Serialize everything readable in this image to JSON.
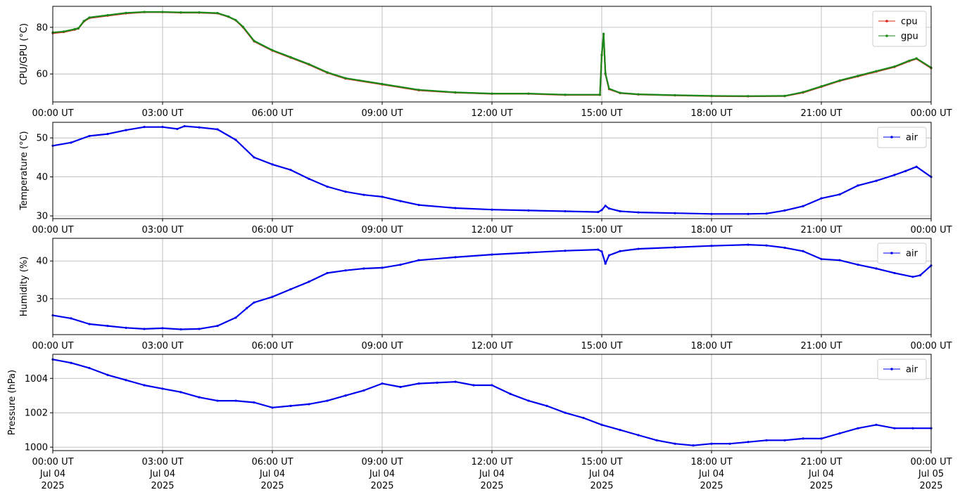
{
  "chart_data": [
    {
      "type": "scatter",
      "ylabel": "CPU/GPU (°C)",
      "ylim": [
        48,
        89
      ],
      "yticks": [
        60,
        80
      ],
      "xlim": [
        0,
        24
      ],
      "xticks": [
        0,
        3,
        6,
        9,
        12,
        15,
        18,
        21,
        24
      ],
      "xtick_labels": [
        "00:00 UT",
        "03:00 UT",
        "06:00 UT",
        "09:00 UT",
        "12:00 UT",
        "15:00 UT",
        "18:00 UT",
        "21:00 UT",
        "00:00 UT"
      ],
      "grid": true,
      "legend": "top-right",
      "series": [
        {
          "name": "cpu",
          "color": "#e0201b",
          "x": [
            0,
            0.3,
            0.6,
            0.7,
            0.85,
            1.0,
            1.5,
            2.0,
            2.5,
            3.0,
            3.5,
            4.0,
            4.5,
            4.8,
            5.0,
            5.2,
            5.5,
            6.0,
            6.5,
            7.0,
            7.5,
            8.0,
            9.0,
            10.0,
            11.0,
            12.0,
            13.0,
            14.0,
            14.95,
            15.0,
            15.05,
            15.1,
            15.2,
            15.5,
            16.0,
            17.0,
            18.0,
            19.0,
            20.0,
            20.5,
            21.0,
            21.5,
            22.0,
            22.5,
            23.0,
            23.4,
            23.6,
            24.0
          ],
          "y": [
            77.5,
            78,
            79,
            79.5,
            82.5,
            84,
            85,
            86,
            86.5,
            86.5,
            86.3,
            86.3,
            86,
            84.5,
            83,
            80,
            74,
            70,
            67,
            64,
            60.5,
            58,
            55.5,
            53,
            52,
            51.5,
            51.5,
            51,
            51,
            68,
            77,
            60,
            53.5,
            51.8,
            51.2,
            50.8,
            50.5,
            50.4,
            50.5,
            52,
            54.5,
            57,
            59,
            61,
            63,
            65.5,
            66.5,
            62.5
          ]
        },
        {
          "name": "gpu",
          "color": "#1a8a1a",
          "x": [
            0,
            0.3,
            0.6,
            0.7,
            0.85,
            1.0,
            1.5,
            2.0,
            2.5,
            3.0,
            3.5,
            4.0,
            4.5,
            4.8,
            5.0,
            5.2,
            5.5,
            6.0,
            6.5,
            7.0,
            7.5,
            8.0,
            9.0,
            10.0,
            11.0,
            12.0,
            13.0,
            14.0,
            14.95,
            15.0,
            15.05,
            15.1,
            15.2,
            15.5,
            16.0,
            17.0,
            18.0,
            19.0,
            20.0,
            20.5,
            21.0,
            21.5,
            22.0,
            22.5,
            23.0,
            23.4,
            23.6,
            24.0
          ],
          "y": [
            77.8,
            78.2,
            79.2,
            79.6,
            82.7,
            84.2,
            85.2,
            86.2,
            86.6,
            86.6,
            86.4,
            86.4,
            86.1,
            84.6,
            83.1,
            80.2,
            74.2,
            70.2,
            67.2,
            64.2,
            60.7,
            58.2,
            55.7,
            53.2,
            52.1,
            51.6,
            51.6,
            51.1,
            51.1,
            68.3,
            77.2,
            60.3,
            53.7,
            51.9,
            51.3,
            50.9,
            50.6,
            50.5,
            50.6,
            52.2,
            54.7,
            57.2,
            59.2,
            61.2,
            63.2,
            65.7,
            66.7,
            62.7
          ]
        }
      ]
    },
    {
      "type": "scatter",
      "ylabel": "Temperature (°C)",
      "ylim": [
        29.3,
        54
      ],
      "yticks": [
        30,
        40,
        50
      ],
      "xlim": [
        0,
        24
      ],
      "xticks": [
        0,
        3,
        6,
        9,
        12,
        15,
        18,
        21,
        24
      ],
      "xtick_labels": [
        "00:00 UT",
        "03:00 UT",
        "06:00 UT",
        "09:00 UT",
        "12:00 UT",
        "15:00 UT",
        "18:00 UT",
        "21:00 UT",
        "00:00 UT"
      ],
      "grid": true,
      "legend": "top-right",
      "series": [
        {
          "name": "air",
          "color": "#0000ee",
          "x": [
            0,
            0.5,
            1.0,
            1.5,
            2.0,
            2.5,
            3.0,
            3.4,
            3.6,
            4.0,
            4.5,
            5.0,
            5.5,
            6.0,
            6.5,
            7.0,
            7.5,
            8.0,
            8.5,
            9.0,
            9.5,
            10.0,
            11.0,
            12.0,
            13.0,
            14.0,
            14.9,
            15.0,
            15.1,
            15.2,
            15.5,
            16.0,
            17.0,
            18.0,
            19.0,
            19.5,
            20.0,
            20.5,
            21.0,
            21.5,
            22.0,
            22.5,
            23.0,
            23.3,
            23.6,
            24.0
          ],
          "y": [
            48,
            48.8,
            50.5,
            51,
            52,
            52.8,
            52.8,
            52.3,
            53,
            52.7,
            52.2,
            49.5,
            45,
            43.2,
            41.8,
            39.5,
            37.5,
            36.2,
            35.4,
            34.9,
            33.8,
            32.8,
            32,
            31.6,
            31.4,
            31.2,
            31,
            31.5,
            32.6,
            31.9,
            31.2,
            30.9,
            30.7,
            30.5,
            30.5,
            30.6,
            31.4,
            32.5,
            34.5,
            35.5,
            37.8,
            39,
            40.5,
            41.5,
            42.6,
            40
          ]
        }
      ]
    },
    {
      "type": "scatter",
      "ylabel": "Humidity (%)",
      "ylim": [
        20.5,
        46
      ],
      "yticks": [
        30,
        40
      ],
      "xlim": [
        0,
        24
      ],
      "xticks": [
        0,
        3,
        6,
        9,
        12,
        15,
        18,
        21,
        24
      ],
      "xtick_labels": [
        "00:00 UT",
        "03:00 UT",
        "06:00 UT",
        "09:00 UT",
        "12:00 UT",
        "15:00 UT",
        "18:00 UT",
        "21:00 UT",
        "00:00 UT"
      ],
      "grid": true,
      "legend": "top-right",
      "series": [
        {
          "name": "air",
          "color": "#0000ee",
          "x": [
            0,
            0.5,
            1.0,
            1.5,
            2.0,
            2.5,
            3.0,
            3.5,
            4.0,
            4.5,
            5.0,
            5.3,
            5.5,
            6.0,
            6.5,
            7.0,
            7.5,
            8.0,
            8.5,
            9.0,
            9.5,
            10.0,
            11.0,
            12.0,
            13.0,
            14.0,
            14.9,
            15.0,
            15.1,
            15.2,
            15.5,
            16.0,
            17.0,
            18.0,
            19.0,
            19.5,
            20.0,
            20.5,
            21.0,
            21.5,
            22.0,
            22.5,
            23.0,
            23.5,
            23.7,
            24.0
          ],
          "y": [
            25.6,
            24.8,
            23.3,
            22.8,
            22.3,
            22,
            22.2,
            21.9,
            22,
            22.8,
            25,
            27.5,
            29,
            30.5,
            32.5,
            34.5,
            36.8,
            37.5,
            38,
            38.2,
            39,
            40.2,
            41,
            41.7,
            42.2,
            42.7,
            43,
            42.5,
            39.3,
            41.5,
            42.6,
            43.2,
            43.6,
            44,
            44.3,
            44.1,
            43.5,
            42.6,
            40.5,
            40.2,
            39,
            38,
            36.8,
            35.8,
            36.2,
            38.8
          ]
        }
      ]
    },
    {
      "type": "scatter",
      "ylabel": "Pressure (hPa)",
      "ylim": [
        999.8,
        1005.4
      ],
      "yticks": [
        1000,
        1002,
        1004
      ],
      "xlim": [
        0,
        24
      ],
      "xticks": [
        0,
        3,
        6,
        9,
        12,
        15,
        18,
        21,
        24
      ],
      "xtick_labels": [
        "00:00 UT",
        "03:00 UT",
        "06:00 UT",
        "09:00 UT",
        "12:00 UT",
        "15:00 UT",
        "18:00 UT",
        "21:00 UT",
        "00:00 UT"
      ],
      "xtick_date_labels": [
        "Jul 04",
        "Jul 04",
        "Jul 04",
        "Jul 04",
        "Jul 04",
        "Jul 04",
        "Jul 04",
        "Jul 04",
        "Jul 05"
      ],
      "xtick_year_labels": [
        "2025",
        "2025",
        "2025",
        "2025",
        "2025",
        "2025",
        "2025",
        "2025",
        "2025"
      ],
      "grid": true,
      "legend": "top-right",
      "series": [
        {
          "name": "air",
          "color": "#0000ee",
          "x": [
            0,
            0.5,
            1.0,
            1.5,
            2.0,
            2.5,
            3.0,
            3.5,
            4.0,
            4.5,
            5.0,
            5.5,
            6.0,
            6.5,
            7.0,
            7.5,
            8.0,
            8.5,
            9.0,
            9.5,
            10.0,
            10.5,
            11.0,
            11.5,
            12.0,
            12.5,
            13.0,
            13.5,
            14.0,
            14.5,
            15.0,
            15.5,
            16.0,
            16.5,
            17.0,
            17.5,
            18.0,
            18.5,
            19.0,
            19.5,
            20.0,
            20.5,
            21.0,
            21.5,
            22.0,
            22.5,
            23.0,
            23.5,
            24.0
          ],
          "y": [
            1005.1,
            1004.9,
            1004.6,
            1004.2,
            1003.9,
            1003.6,
            1003.4,
            1003.2,
            1002.9,
            1002.7,
            1002.7,
            1002.6,
            1002.3,
            1002.4,
            1002.5,
            1002.7,
            1003.0,
            1003.3,
            1003.7,
            1003.5,
            1003.7,
            1003.75,
            1003.8,
            1003.6,
            1003.6,
            1003.1,
            1002.7,
            1002.4,
            1002.0,
            1001.7,
            1001.3,
            1001.0,
            1000.7,
            1000.4,
            1000.2,
            1000.1,
            1000.2,
            1000.2,
            1000.3,
            1000.4,
            1000.4,
            1000.5,
            1000.5,
            1000.8,
            1001.1,
            1001.3,
            1001.1,
            1001.1,
            1001.1
          ]
        }
      ]
    }
  ]
}
